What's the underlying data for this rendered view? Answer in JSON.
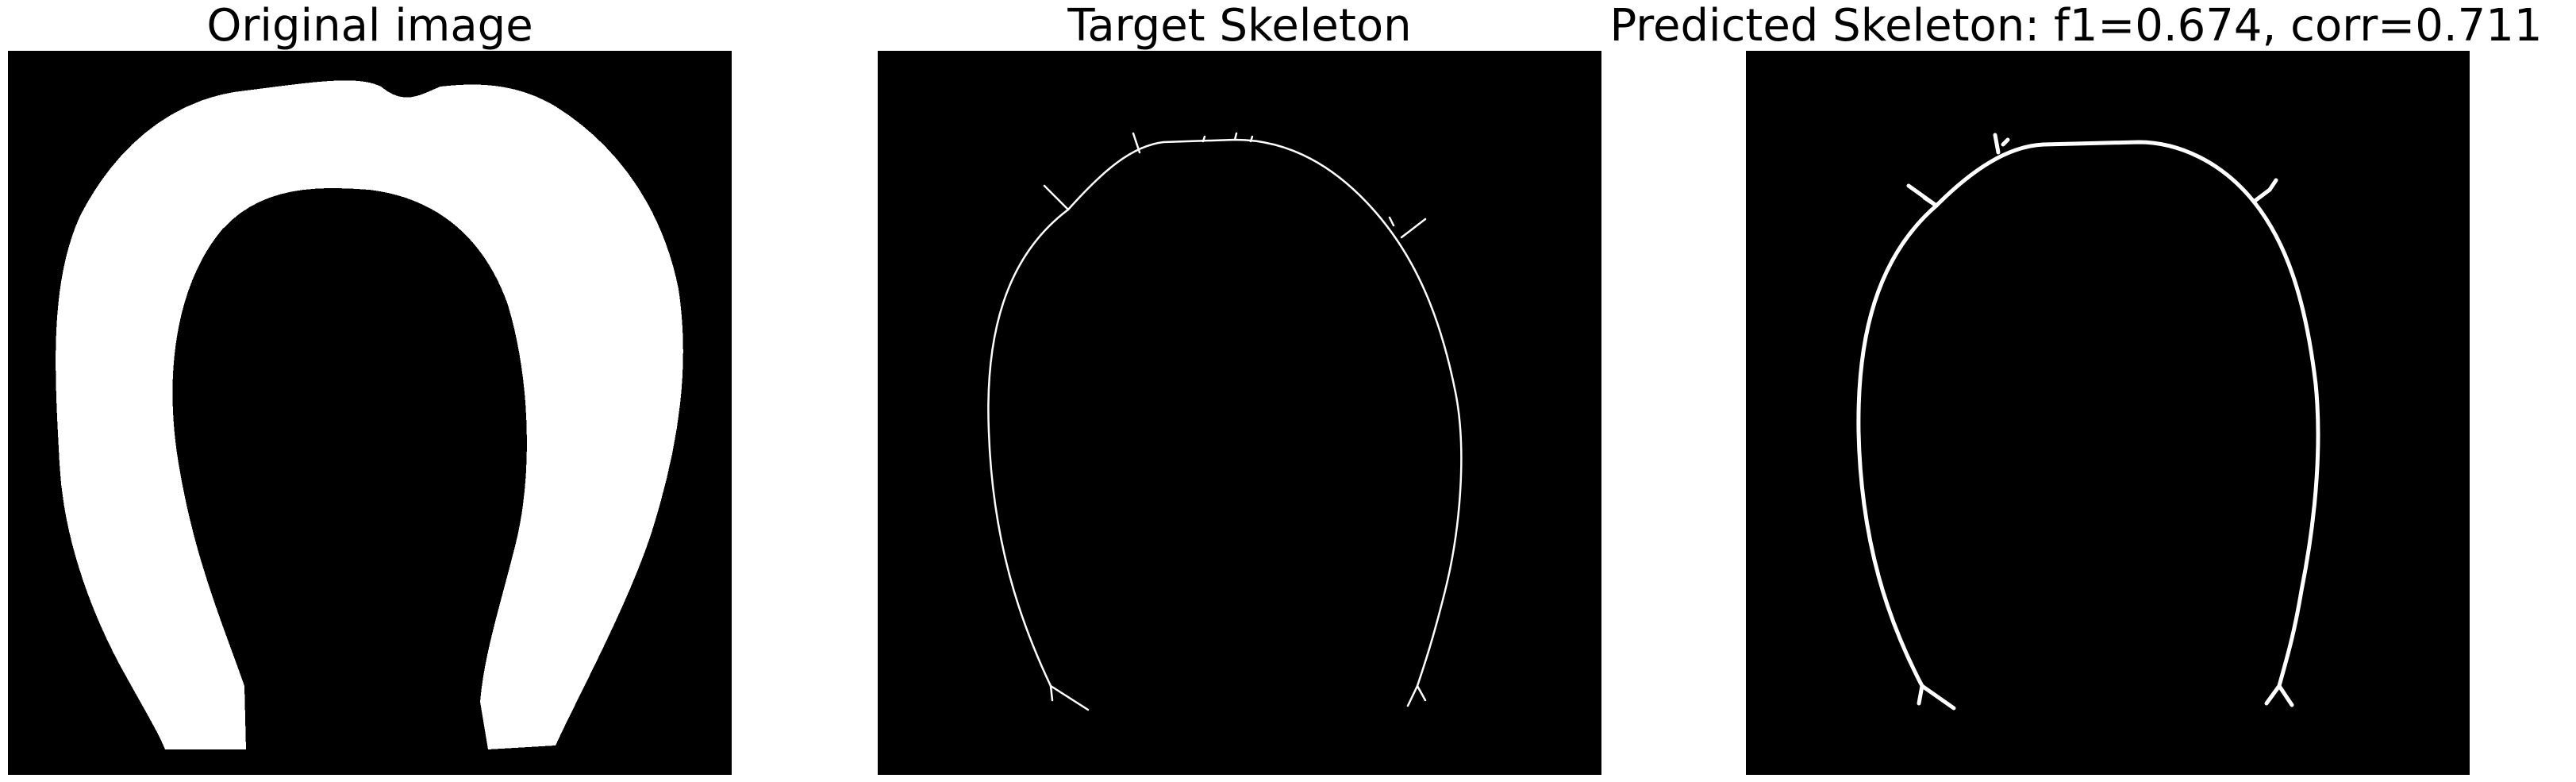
{
  "panels": [
    {
      "title": "Original image"
    },
    {
      "title": "Target Skeleton"
    },
    {
      "title": "Predicted Skeleton: f1=0.674, corr=0.711"
    }
  ],
  "colors": {
    "background": "#000000",
    "foreground": "#ffffff",
    "page": "#ffffff"
  }
}
